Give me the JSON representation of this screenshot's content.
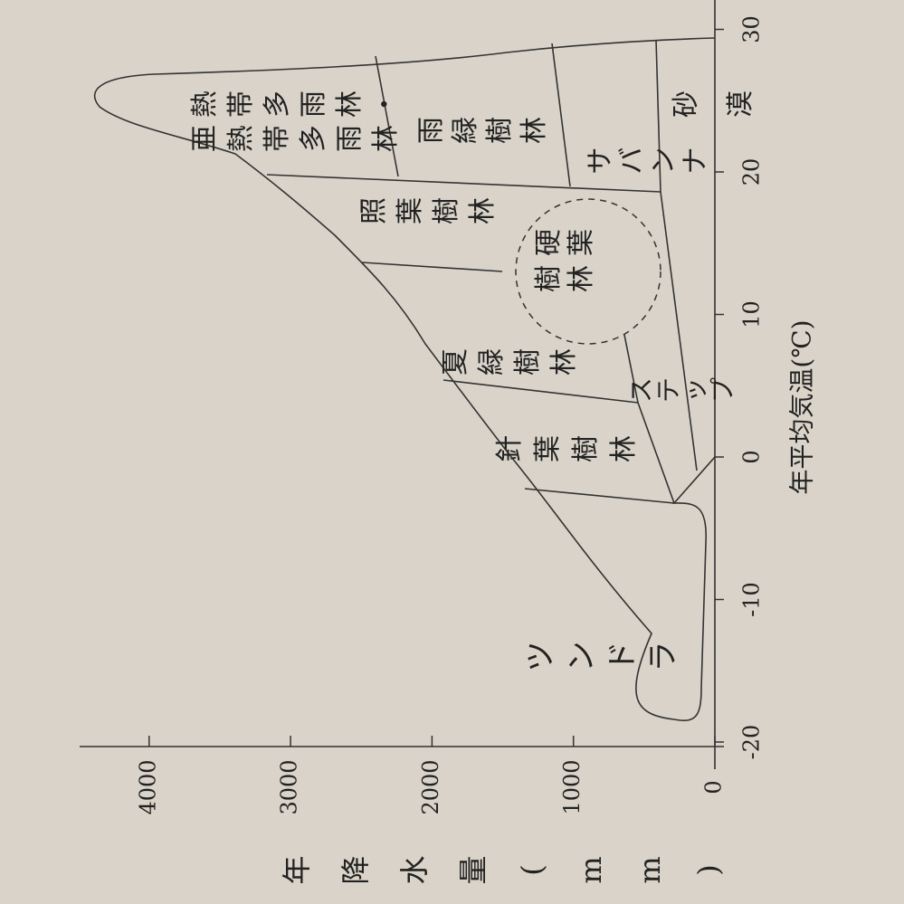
{
  "x_axis": {
    "title": "年平均気温(℃)",
    "ticks": [
      -20,
      -10,
      0,
      10,
      20,
      30
    ]
  },
  "y_axis": {
    "title": "年降水量(mm)",
    "ticks": [
      0,
      1000,
      2000,
      3000,
      4000
    ]
  },
  "biomes": {
    "tropical": [
      "熱帯多雨林・",
      "亜熱帯多雨林"
    ],
    "raingreen": "雨緑樹林",
    "laurel": "照葉樹林",
    "sclerophyll": [
      "硬葉",
      "樹林"
    ],
    "summergreen": "夏緑樹林",
    "conifer": "針葉樹林",
    "tundra": "ツンドラ",
    "steppe": "ステップ",
    "savanna": "サバンナ",
    "desert": "砂漠"
  }
}
